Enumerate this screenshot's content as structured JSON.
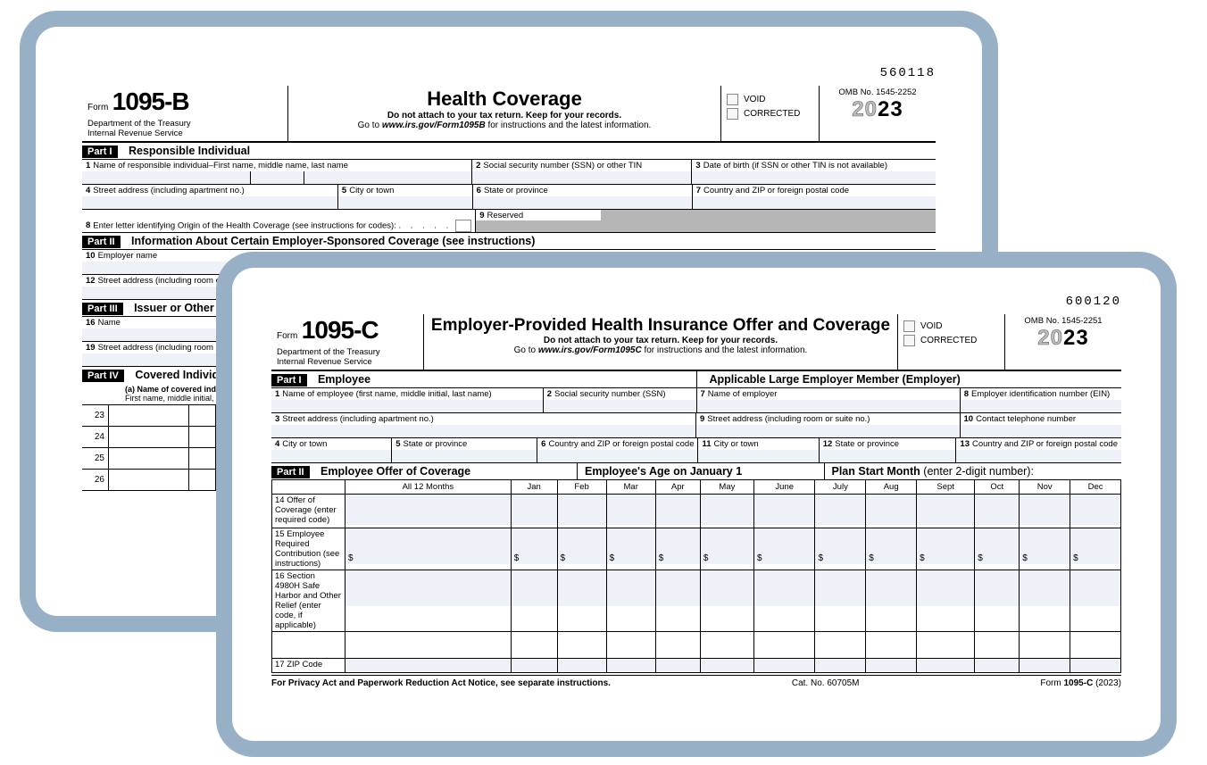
{
  "shadow_color": "#97b0c5",
  "field_bg": "#eef1f7",
  "form_b": {
    "micr": "560118",
    "form_word": "Form",
    "form_no": "1095-B",
    "dept1": "Department of the Treasury",
    "dept2": "Internal Revenue Service",
    "title": "Health Coverage",
    "sub1": "Do not attach to your tax return. Keep for your records.",
    "sub2_a": "Go to ",
    "sub2_b": "www.irs.gov/Form1095B",
    "sub2_c": " for instructions and the latest information.",
    "void": "VOID",
    "corrected": "CORRECTED",
    "omb": "OMB No. 1545-2252",
    "year_a": "20",
    "year_b": "23",
    "part1": "Part I",
    "part1_title": "Responsible Individual",
    "f1": "Name of responsible individual–First name, middle name, last name",
    "f2": "Social security number (SSN) or other TIN",
    "f3": "Date of birth (if SSN or other TIN is not available)",
    "f4": "Street address (including apartment no.)",
    "f5": "City or town",
    "f6": "State or province",
    "f7": "Country and ZIP or foreign postal code",
    "f8": "Enter letter identifying Origin of the Health Coverage (see instructions for codes):",
    "f9": "Reserved",
    "part2": "Part II",
    "part2_title": "Information About Certain Employer-Sponsored Coverage (see instructions)",
    "f10": "Employer name",
    "f12": "Street address (including room or suite no.)",
    "part3": "Part III",
    "part3_title": "Issuer or Other Coverage Provider",
    "f16": "Name",
    "f19": "Street address (including room or suite no.)",
    "part4": "Part IV",
    "part4_title": "Covered Individuals",
    "cov_a1": "(a) Name of covered individual(s)",
    "cov_a2": "First name, middle initial, last name",
    "rows": [
      "23",
      "24",
      "25",
      "26"
    ]
  },
  "form_c": {
    "micr": "600120",
    "form_word": "Form",
    "form_no": "1095-C",
    "dept1": "Department of the Treasury",
    "dept2": "Internal Revenue Service",
    "title": "Employer-Provided Health Insurance Offer and Coverage",
    "sub1": "Do not attach to your tax return. Keep for your records.",
    "sub2_a": "Go to ",
    "sub2_b": "www.irs.gov/Form1095C",
    "sub2_c": " for instructions and the latest information.",
    "void": "VOID",
    "corrected": "CORRECTED",
    "omb": "OMB No. 1545-2251",
    "year_a": "20",
    "year_b": "23",
    "part1": "Part I",
    "part1_t1": "Employee",
    "part1_t2": "Applicable Large Employer Member (Employer)",
    "f1": "Name of employee (first name, middle initial, last name)",
    "f2": "Social security number (SSN)",
    "f3": "Street address (including apartment no.)",
    "f4": "City or town",
    "f5": "State or province",
    "f6": "Country and ZIP or foreign postal code",
    "f7": "Name of employer",
    "f8": "Employer identification number (EIN)",
    "f9": "Street address (including room or suite no.)",
    "f10": "Contact telephone number",
    "f11": "City or town",
    "f12": "State or province",
    "f13": "Country and ZIP or foreign postal code",
    "part2": "Part II",
    "part2_t1": "Employee Offer of Coverage",
    "part2_t2": "Employee's Age on January 1",
    "part2_t3a": "Plan Start Month ",
    "part2_t3b": "(enter 2-digit number):",
    "months": [
      "All 12 Months",
      "Jan",
      "Feb",
      "Mar",
      "Apr",
      "May",
      "June",
      "July",
      "Aug",
      "Sept",
      "Oct",
      "Nov",
      "Dec"
    ],
    "r14": "14 Offer of Coverage (enter required code)",
    "r15": "15 Employee Required Contribution (see instructions)",
    "r16": "16 Section 4980H Safe Harbor and Other Relief (enter code, if applicable)",
    "r17": "17 ZIP Code",
    "footer_l": "For Privacy Act and Paperwork Reduction Act Notice, see separate instructions.",
    "footer_m": "Cat. No. 60705M",
    "footer_r1": "Form ",
    "footer_r2": "1095-C",
    "footer_r3": " (2023)"
  }
}
